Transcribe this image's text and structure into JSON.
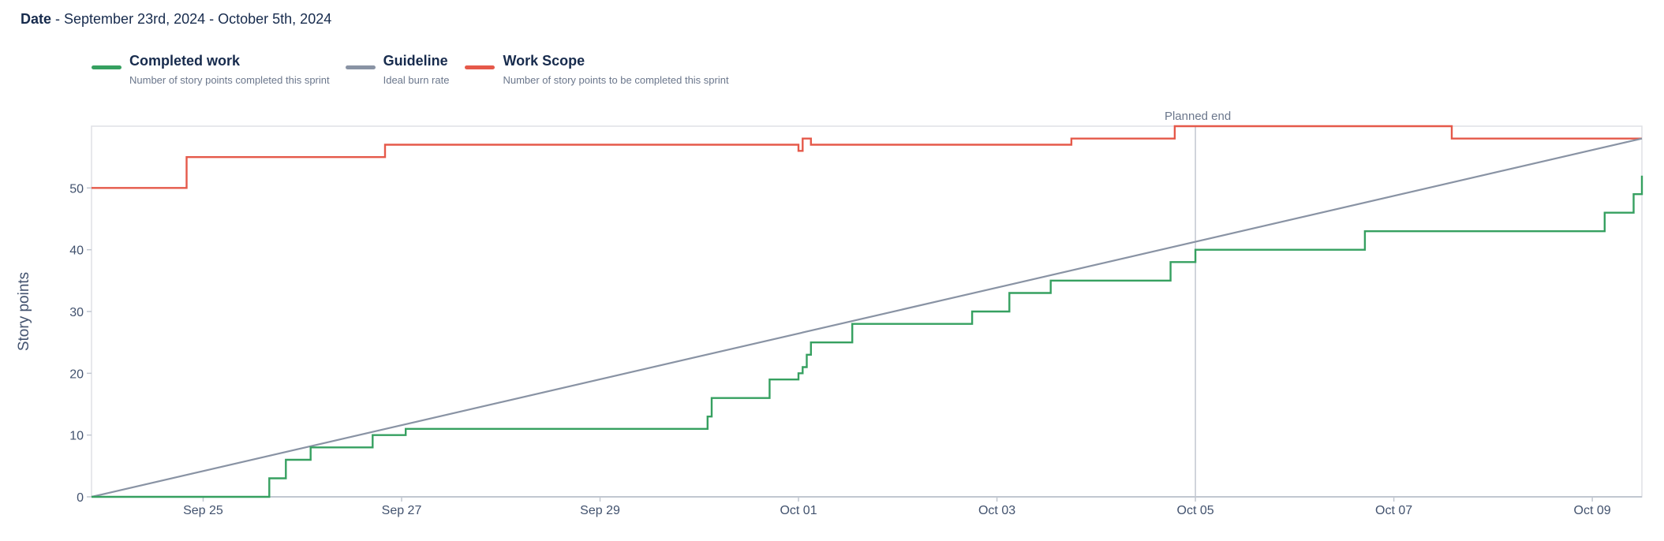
{
  "header": {
    "date_label": "Date",
    "date_range": " - September 23rd, 2024 - October 5th, 2024"
  },
  "legend": [
    {
      "name": "Completed work",
      "desc": "Number of story points completed this sprint",
      "color": "#36a060"
    },
    {
      "name": "Guideline",
      "desc": "Ideal burn rate",
      "color": "#8993a4"
    },
    {
      "name": "Work Scope",
      "desc": "Number of story points to be completed this sprint",
      "color": "#e5594a"
    }
  ],
  "chart_data": {
    "type": "line",
    "ylabel": "Story points",
    "ylim": [
      0,
      60
    ],
    "yticks": [
      0,
      10,
      20,
      30,
      40,
      50
    ],
    "xlim": [
      "2024-09-23 21:00",
      "2024-10-09 12:00"
    ],
    "xticks": [
      {
        "label": "Sep 25",
        "date": "2024-09-25 00:00"
      },
      {
        "label": "Sep 27",
        "date": "2024-09-27 00:00"
      },
      {
        "label": "Sep 29",
        "date": "2024-09-29 00:00"
      },
      {
        "label": "Oct 01",
        "date": "2024-10-01 00:00"
      },
      {
        "label": "Oct 03",
        "date": "2024-10-03 00:00"
      },
      {
        "label": "Oct 05",
        "date": "2024-10-05 00:00"
      },
      {
        "label": "Oct 07",
        "date": "2024-10-07 00:00"
      },
      {
        "label": "Oct 09",
        "date": "2024-10-09 00:00"
      }
    ],
    "annotation": {
      "label": "Planned end",
      "date": "2024-10-05 00:00"
    },
    "grid": false,
    "series": [
      {
        "name": "Work Scope",
        "color": "#e5594a",
        "step": true,
        "points": [
          [
            "2024-09-23 21:00",
            50
          ],
          [
            "2024-09-24 20:00",
            55
          ],
          [
            "2024-09-26 20:00",
            57
          ],
          [
            "2024-10-01 00:00",
            56
          ],
          [
            "2024-10-01 01:00",
            58
          ],
          [
            "2024-10-01 03:00",
            57
          ],
          [
            "2024-10-03 18:00",
            58
          ],
          [
            "2024-10-04 19:00",
            60
          ],
          [
            "2024-10-07 14:00",
            58
          ],
          [
            "2024-10-09 12:00",
            58
          ]
        ]
      },
      {
        "name": "Guideline",
        "color": "#8993a4",
        "step": false,
        "points": [
          [
            "2024-09-23 21:00",
            0
          ],
          [
            "2024-10-09 12:00",
            58
          ]
        ]
      },
      {
        "name": "Completed work",
        "color": "#36a060",
        "step": true,
        "points": [
          [
            "2024-09-23 21:00",
            0
          ],
          [
            "2024-09-25 16:00",
            3
          ],
          [
            "2024-09-25 20:00",
            6
          ],
          [
            "2024-09-26 02:00",
            8
          ],
          [
            "2024-09-26 17:00",
            10
          ],
          [
            "2024-09-27 01:00",
            11
          ],
          [
            "2024-09-30 02:00",
            13
          ],
          [
            "2024-09-30 03:00",
            16
          ],
          [
            "2024-09-30 17:00",
            19
          ],
          [
            "2024-10-01 00:00",
            20
          ],
          [
            "2024-10-01 01:00",
            21
          ],
          [
            "2024-10-01 02:00",
            23
          ],
          [
            "2024-10-01 03:00",
            25
          ],
          [
            "2024-10-01 13:00",
            28
          ],
          [
            "2024-10-02 18:00",
            30
          ],
          [
            "2024-10-03 03:00",
            33
          ],
          [
            "2024-10-03 13:00",
            35
          ],
          [
            "2024-10-04 18:00",
            38
          ],
          [
            "2024-10-05 00:00",
            40
          ],
          [
            "2024-10-06 17:00",
            43
          ],
          [
            "2024-10-09 03:00",
            46
          ],
          [
            "2024-10-09 10:00",
            49
          ],
          [
            "2024-10-09 12:00",
            52
          ]
        ]
      }
    ]
  }
}
